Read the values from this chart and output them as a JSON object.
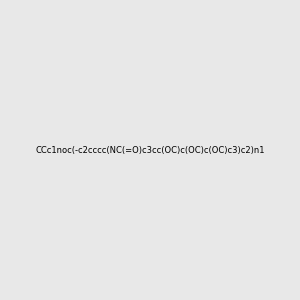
{
  "smiles": "CCc1noc(-c2cccc(NC(=O)c3cc(OC)c(OC)c(OC)c3)c2)n1",
  "title": "",
  "bg_color": "#e8e8e8",
  "figsize": [
    3.0,
    3.0
  ],
  "dpi": 100
}
